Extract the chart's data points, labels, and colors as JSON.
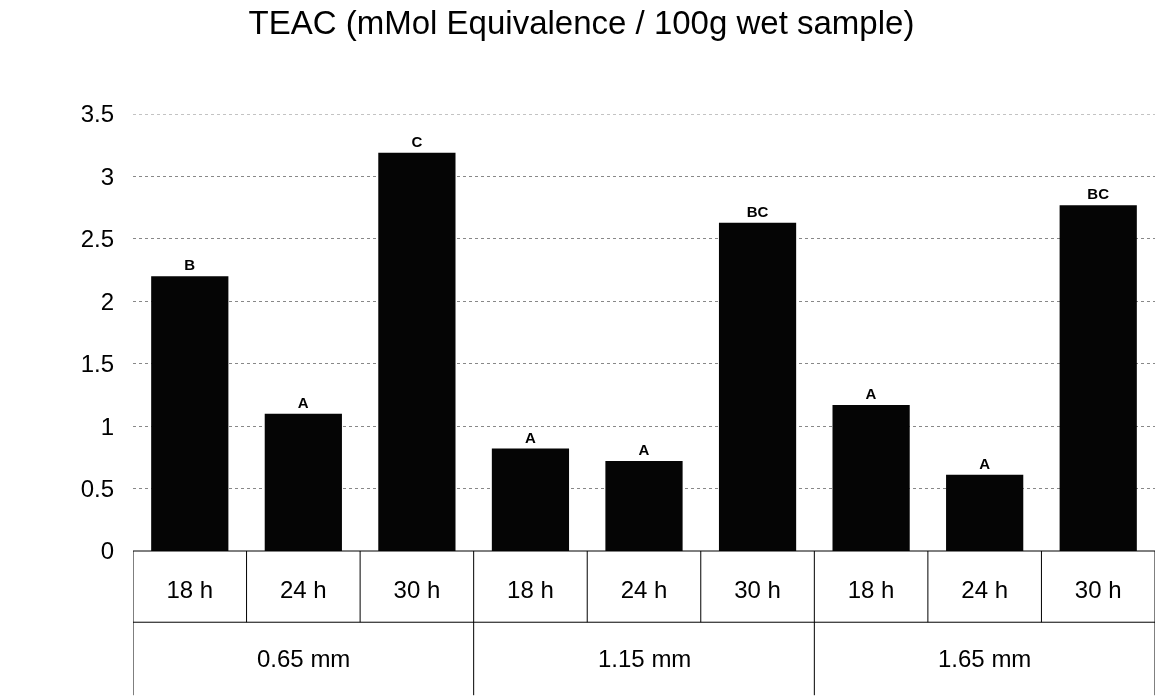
{
  "chart_data": {
    "type": "bar",
    "title": "TEAC (mMol Equivalence / 100g wet sample)",
    "categories": [
      "18 h",
      "24 h",
      "30 h",
      "18 h",
      "24 h",
      "30 h",
      "18 h",
      "24 h",
      "30 h"
    ],
    "values": [
      2.2,
      1.1,
      3.19,
      0.82,
      0.72,
      2.63,
      1.17,
      0.61,
      2.77
    ],
    "value_labels": [
      "B",
      "A",
      "C",
      "A",
      "A",
      "BC",
      "A",
      "A",
      "BC"
    ],
    "color": "#050505",
    "annotations": [
      "0.65 mm",
      "1.15 mm",
      "1.65 mm"
    ],
    "ylim": [
      0,
      3.5
    ],
    "yticks": [
      0,
      0.5,
      1,
      1.5,
      2,
      2.5,
      3,
      3.5
    ],
    "grid": "y"
  }
}
